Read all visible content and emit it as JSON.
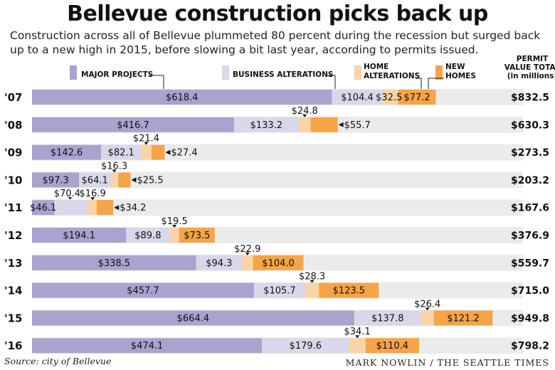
{
  "header": {
    "title": "Bellevue construction picks back up",
    "subtitle": "Construction across all of Bellevue plummeted 80 percent during the recession but surged back up to a new high in 2015, before slowing a bit last year, according to permits issued."
  },
  "total_header": [
    "PERMIT",
    "VALUE TOTAL",
    "(in millions)"
  ],
  "colors": {
    "major": "#a8a3cf",
    "business": "#d8d8ea",
    "home": "#fbd3a6",
    "newhomes": "#f6a447",
    "row_band": "#ebebeb"
  },
  "chart_data": {
    "type": "bar",
    "stacked": true,
    "orientation": "horizontal",
    "categories": [
      "'07",
      "'08",
      "'09",
      "'10",
      "'11",
      "'12",
      "'13",
      "'14",
      "'15",
      "'16"
    ],
    "series": [
      {
        "name": "MAJOR PROJECTS",
        "values": [
          618.4,
          416.7,
          142.6,
          97.3,
          46.1,
          194.1,
          338.5,
          457.7,
          664.4,
          474.1
        ]
      },
      {
        "name": "BUSINESS ALTERATIONS",
        "values": [
          104.4,
          133.2,
          82.1,
          64.1,
          70.4,
          89.8,
          94.3,
          105.7,
          137.8,
          179.6
        ]
      },
      {
        "name": "HOME ALTERATIONS",
        "values": [
          32.5,
          24.8,
          21.4,
          16.3,
          16.9,
          19.5,
          22.9,
          28.3,
          26.4,
          34.1
        ]
      },
      {
        "name": "NEW HOMES",
        "values": [
          77.2,
          55.7,
          27.4,
          25.5,
          34.2,
          73.5,
          104.0,
          123.5,
          121.2,
          110.4
        ]
      }
    ],
    "value_labels": [
      [
        "$618.4",
        "$104.4",
        "$32.5",
        "$77.2"
      ],
      [
        "$416.7",
        "$133.2",
        "$24.8",
        "$55.7"
      ],
      [
        "$142.6",
        "$82.1",
        "$21.4",
        "$27.4"
      ],
      [
        "$97.3",
        "$64.1",
        "$16.3",
        "$25.5"
      ],
      [
        "$46.1",
        "$70.4",
        "$16.9",
        "$34.2"
      ],
      [
        "$194.1",
        "$89.8",
        "$19.5",
        "$73.5"
      ],
      [
        "$338.5",
        "$94.3",
        "$22.9",
        "$104.0"
      ],
      [
        "$457.7",
        "$105.7",
        "$28.3",
        "$123.5"
      ],
      [
        "$664.4",
        "$137.8",
        "$26.4",
        "$121.2"
      ],
      [
        "$474.1",
        "$179.6",
        "$34.1",
        "$110.4"
      ]
    ],
    "totals": [
      "$832.5",
      "$630.3",
      "$273.5",
      "$203.2",
      "$167.6",
      "$376.9",
      "$559.7",
      "$715.0",
      "$949.8",
      "$798.2"
    ],
    "legend_labels": [
      "MAJOR PROJECTS",
      "BUSINESS ALTERATIONS",
      "HOME\nALTERATIONS",
      "NEW\nHOMES"
    ],
    "xlim": [
      0,
      1000
    ]
  },
  "footer": {
    "source": "Source: city of Bellevue",
    "credit": "MARK NOWLIN / THE SEATTLE TIMES"
  }
}
